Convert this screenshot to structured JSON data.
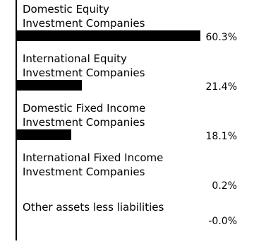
{
  "chart_data": {
    "type": "bar",
    "orientation": "horizontal",
    "color": "#000000",
    "categories": [
      "Domestic Equity\nInvestment Companies",
      "International Equity\nInvestment Companies",
      "Domestic Fixed Income\nInvestment Companies",
      "International Fixed Income\nInvestment Companies",
      "Other assets less liabilities"
    ],
    "values": [
      60.3,
      21.4,
      18.1,
      0.2,
      -0.0
    ],
    "value_labels": [
      "60.3%",
      "21.4%",
      "18.1%",
      "0.2%",
      "-0.0%"
    ]
  }
}
